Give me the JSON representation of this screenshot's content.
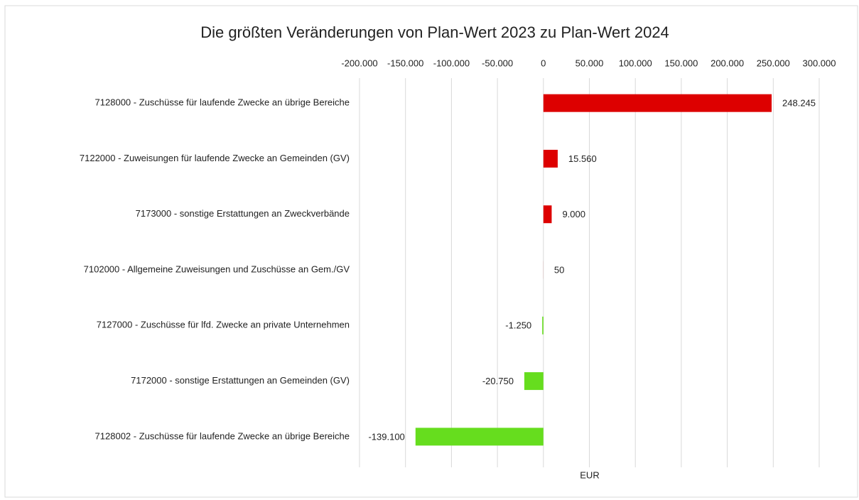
{
  "chart_data": {
    "type": "bar",
    "orientation": "horizontal",
    "title": "Die größten Veränderungen von  Plan-Wert 2023  zu  Plan-Wert 2024",
    "x_label": "EUR",
    "categories": [
      "7128000 - Zuschüsse für laufende Zwecke an übrige Bereiche",
      "7122000 - Zuweisungen für laufende Zwecke an Gemeinden (GV)",
      "7173000 - sonstige Erstattungen an Zweckverbände",
      "7102000 - Allgemeine Zuweisungen und Zuschüsse an Gem./GV",
      "7127000 - Zuschüsse für lfd. Zwecke an private Unternehmen",
      "7172000 - sonstige Erstattungen an Gemeinden (GV)",
      "7128002 - Zuschüsse für laufende Zwecke an übrige Bereiche"
    ],
    "values": [
      248245,
      15560,
      9000,
      50,
      -1250,
      -20750,
      -139100
    ],
    "value_labels": [
      "248.245",
      "15.560",
      "9.000",
      "50",
      "-1.250",
      "-20.750",
      "-139.100"
    ],
    "colors": {
      "positive": "#dd0000",
      "negative": "#66dd1e"
    },
    "xlim": [
      -200000,
      300000
    ],
    "xticks": [
      {
        "value": -200000,
        "label": "-200.000"
      },
      {
        "value": -150000,
        "label": "-150.000"
      },
      {
        "value": -100000,
        "label": "-100.000"
      },
      {
        "value": -50000,
        "label": "-50.000"
      },
      0,
      {
        "value": 50000,
        "label": "50.000"
      },
      {
        "value": 100000,
        "label": "100.000"
      },
      {
        "value": 150000,
        "label": "150.000"
      },
      {
        "value": 200000,
        "label": "200.000"
      },
      {
        "value": 250000,
        "label": "250.000"
      },
      {
        "value": 300000,
        "label": "300.000"
      }
    ],
    "grid": true
  }
}
